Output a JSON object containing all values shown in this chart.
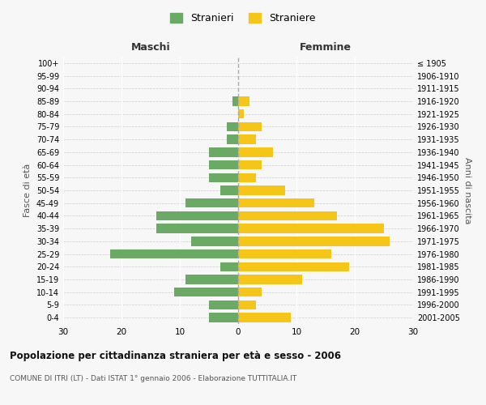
{
  "age_groups": [
    "0-4",
    "5-9",
    "10-14",
    "15-19",
    "20-24",
    "25-29",
    "30-34",
    "35-39",
    "40-44",
    "45-49",
    "50-54",
    "55-59",
    "60-64",
    "65-69",
    "70-74",
    "75-79",
    "80-84",
    "85-89",
    "90-94",
    "95-99",
    "100+"
  ],
  "birth_years": [
    "2001-2005",
    "1996-2000",
    "1991-1995",
    "1986-1990",
    "1981-1985",
    "1976-1980",
    "1971-1975",
    "1966-1970",
    "1961-1965",
    "1956-1960",
    "1951-1955",
    "1946-1950",
    "1941-1945",
    "1936-1940",
    "1931-1935",
    "1926-1930",
    "1921-1925",
    "1916-1920",
    "1911-1915",
    "1906-1910",
    "≤ 1905"
  ],
  "maschi": [
    5,
    5,
    11,
    9,
    3,
    22,
    8,
    14,
    14,
    9,
    3,
    5,
    5,
    5,
    2,
    2,
    0,
    1,
    0,
    0,
    0
  ],
  "femmine": [
    9,
    3,
    4,
    11,
    19,
    16,
    26,
    25,
    17,
    13,
    8,
    3,
    4,
    6,
    3,
    4,
    1,
    2,
    0,
    0,
    0
  ],
  "color_maschi": "#6aaa64",
  "color_femmine": "#f5c518",
  "title": "Popolazione per cittadinanza straniera per età e sesso - 2006",
  "subtitle": "COMUNE DI ITRI (LT) - Dati ISTAT 1° gennaio 2006 - Elaborazione TUTTITALIA.IT",
  "label_left": "Maschi",
  "label_right": "Femmine",
  "ylabel_left": "Fasce di età",
  "ylabel_right": "Anni di nascita",
  "legend_maschi": "Stranieri",
  "legend_femmine": "Straniere",
  "xlim": 30,
  "background_color": "#f7f7f7",
  "bar_height": 0.72
}
